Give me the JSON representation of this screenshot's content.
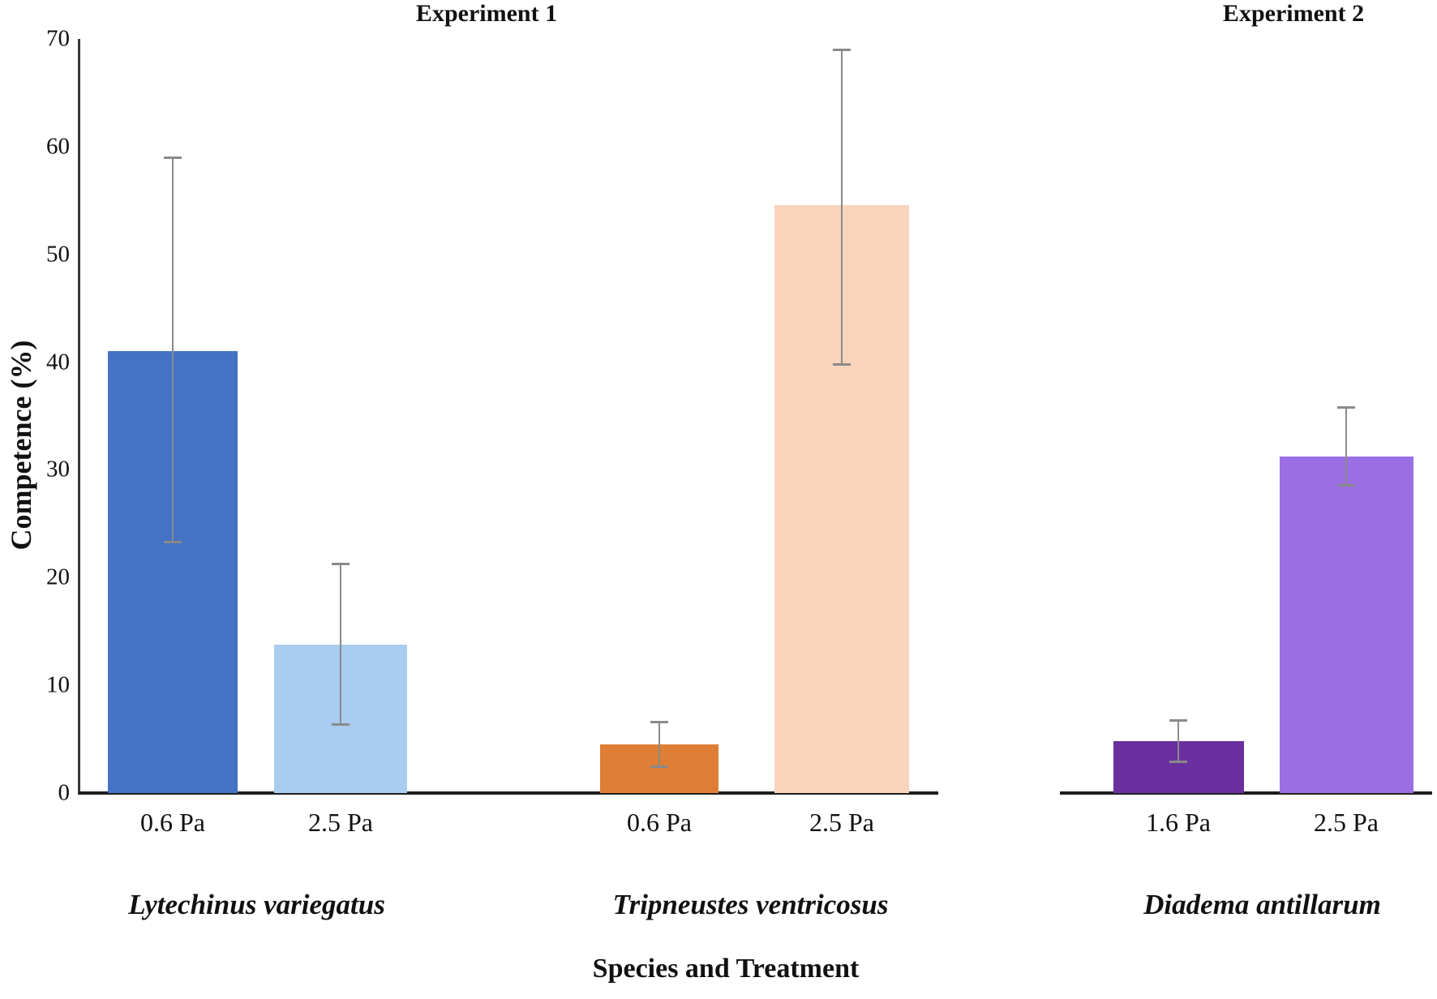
{
  "chart_data": {
    "type": "bar",
    "panel_titles": [
      "Experiment 1",
      "Experiment 2"
    ],
    "ylabel": "Competence (%)",
    "xlabel": "Species and Treatment",
    "ylim": [
      0,
      70
    ],
    "yticks": [
      0,
      10,
      20,
      30,
      40,
      50,
      60,
      70
    ],
    "grid": "off",
    "legend": "none",
    "error_bar_color": "#8a8a8a",
    "axis_color": "#1f1f1f",
    "groups": [
      {
        "species": "Lytechinus variegatus",
        "experiment": "Experiment 1",
        "bars": [
          {
            "label": "0.6 Pa",
            "value": 41.0,
            "err_low": 23.3,
            "err_high": 59.0,
            "color": "#4472C4"
          },
          {
            "label": "2.5 Pa",
            "value": 13.8,
            "err_low": 6.4,
            "err_high": 21.3,
            "color": "#A9CCF0"
          }
        ]
      },
      {
        "species": "Tripneustes ventricosus",
        "experiment": "Experiment 1",
        "bars": [
          {
            "label": "0.6 Pa",
            "value": 4.5,
            "err_low": 2.5,
            "err_high": 6.6,
            "color": "#E07E35"
          },
          {
            "label": "2.5 Pa",
            "value": 54.6,
            "err_low": 39.8,
            "err_high": 69.0,
            "color": "#F8D4BD"
          }
        ]
      },
      {
        "species": "Diadema antillarum",
        "experiment": "Experiment 2",
        "bars": [
          {
            "label": "1.6 Pa",
            "value": 4.8,
            "err_low": 2.9,
            "err_high": 6.8,
            "color": "#6A30A0"
          },
          {
            "label": "2.5 Pa",
            "value": 31.2,
            "err_low": 28.6,
            "err_high": 35.8,
            "color": "#9B6FE3"
          }
        ]
      }
    ]
  }
}
